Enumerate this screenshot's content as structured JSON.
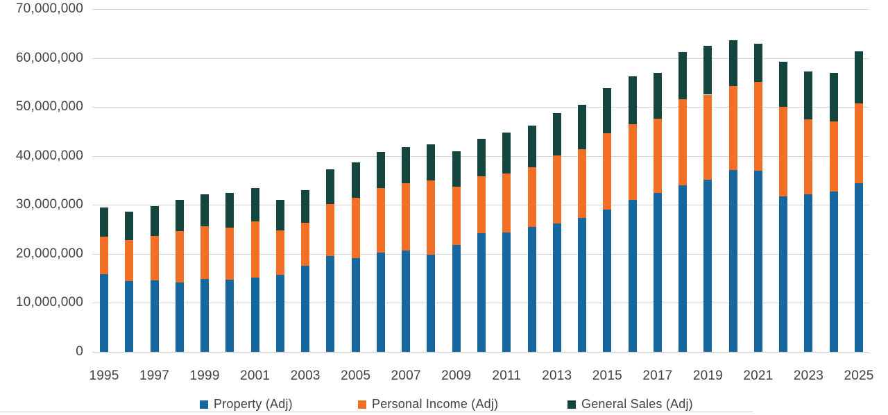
{
  "colors": {
    "property": "#15679E",
    "personal_income": "#F26F26",
    "general_sales": "#15453F",
    "gridline": "#d5d5d5",
    "baseline": "#c9c9c9",
    "axis_text": "#414042",
    "background": "#ffffff"
  },
  "chart_data": {
    "type": "bar",
    "stacked": true,
    "grid": true,
    "legend_position": "bottom",
    "ylim": [
      0,
      70000000
    ],
    "categories": [
      1995,
      1996,
      1997,
      1998,
      1999,
      2000,
      2001,
      2002,
      2003,
      2004,
      2005,
      2006,
      2007,
      2008,
      2009,
      2010,
      2011,
      2012,
      2013,
      2014,
      2015,
      2016,
      2017,
      2018,
      2019,
      2020,
      2021,
      2022,
      2023,
      2024,
      2025
    ],
    "x_tick_labels": [
      "1995",
      "1997",
      "1999",
      "2001",
      "2003",
      "2005",
      "2007",
      "2009",
      "2011",
      "2013",
      "2015",
      "2017",
      "2019",
      "2021",
      "2023",
      "2025"
    ],
    "y_ticks": [
      0,
      10000000,
      20000000,
      30000000,
      40000000,
      50000000,
      60000000,
      70000000
    ],
    "y_tick_labels": [
      "0",
      "10,000,000",
      "20,000,000",
      "30,000,000",
      "40,000,000",
      "50,000,000",
      "60,000,000",
      "70,000,000"
    ],
    "series": [
      {
        "name": "Property (Adj)",
        "color_key": "property",
        "values": [
          15800000,
          14500000,
          14600000,
          14200000,
          14900000,
          14700000,
          15100000,
          15700000,
          17600000,
          19600000,
          19100000,
          20200000,
          20700000,
          19800000,
          21800000,
          24200000,
          24400000,
          25500000,
          26200000,
          27400000,
          29100000,
          31000000,
          32400000,
          34000000,
          35100000,
          37100000,
          37000000,
          31700000,
          32100000,
          32700000,
          34400000
        ]
      },
      {
        "name": "Personal Income (Adj)",
        "color_key": "personal_income",
        "values": [
          7700000,
          8300000,
          9000000,
          10400000,
          10800000,
          10700000,
          11500000,
          9100000,
          8800000,
          10600000,
          12300000,
          13200000,
          13700000,
          15200000,
          11900000,
          11600000,
          12000000,
          12200000,
          13900000,
          14000000,
          15500000,
          15500000,
          15200000,
          17600000,
          17400000,
          17200000,
          18100000,
          18300000,
          15300000,
          14400000,
          16300000
        ]
      },
      {
        "name": "General Sales (Adj)",
        "color_key": "general_sales",
        "values": [
          6000000,
          5800000,
          6200000,
          6400000,
          6500000,
          7000000,
          6900000,
          6300000,
          6600000,
          7100000,
          7300000,
          7400000,
          7400000,
          7400000,
          7200000,
          7700000,
          8400000,
          8500000,
          8600000,
          9000000,
          9300000,
          9700000,
          9400000,
          9600000,
          10000000,
          9300000,
          7800000,
          9300000,
          9900000,
          9900000,
          10600000
        ]
      }
    ]
  }
}
